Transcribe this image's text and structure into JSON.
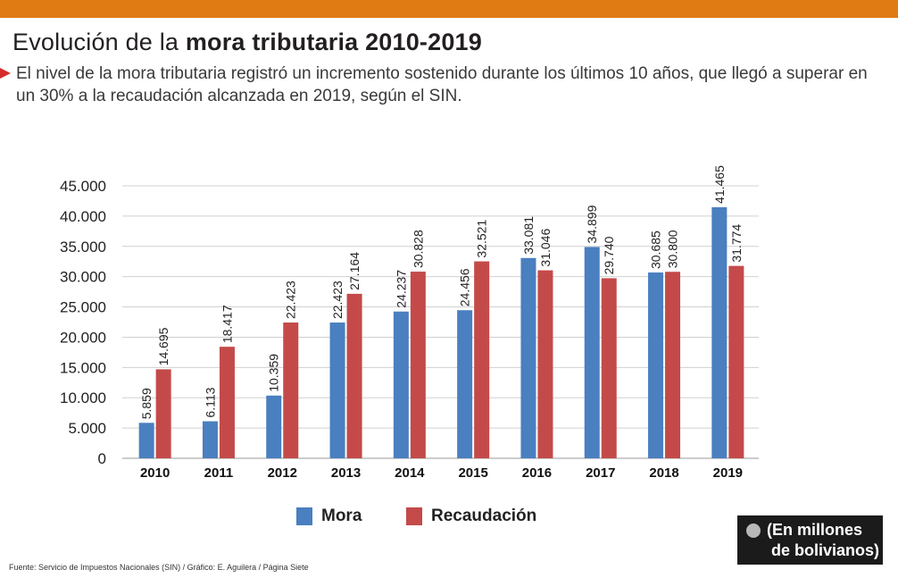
{
  "header": {
    "title_regular": "Evolución de la ",
    "title_bold": "mora tributaria 2010-2019",
    "subtitle": "El nivel de la mora tributaria registró un incremento sostenido durante los últimos 10 años, que llegó a superar en un 30% a la recaudación alcanzada en 2019, según el SIN."
  },
  "colors": {
    "accent_bar": "#e07b14",
    "bullet": "#d62b2b",
    "mora": "#4a7fc0",
    "recaudacion": "#c44a4a",
    "grid": "#d0d0d0"
  },
  "chart_data": {
    "type": "bar",
    "categories": [
      "2010",
      "2011",
      "2012",
      "2013",
      "2014",
      "2015",
      "2016",
      "2017",
      "2018",
      "2019"
    ],
    "series": [
      {
        "name": "Mora",
        "values": [
          5859,
          6113,
          10359,
          22423,
          24237,
          24456,
          33081,
          34899,
          30685,
          41465
        ],
        "labels": [
          "5.859",
          "6.113",
          "10.359",
          "22.423",
          "24.237",
          "24.456",
          "33.081",
          "34.899",
          "30.685",
          "41.465"
        ]
      },
      {
        "name": "Recaudación",
        "values": [
          14695,
          18417,
          22423,
          27164,
          30828,
          32521,
          31046,
          29740,
          30800,
          31774
        ],
        "labels": [
          "14.695",
          "18.417",
          "22.423",
          "27.164",
          "30.828",
          "32.521",
          "31.046",
          "29.740",
          "30.800",
          "31.774"
        ]
      }
    ],
    "yticks": [
      0,
      5000,
      10000,
      15000,
      20000,
      25000,
      30000,
      35000,
      40000,
      45000
    ],
    "ytick_labels": [
      "0",
      "5.000",
      "10.000",
      "15.000",
      "20.000",
      "25.000",
      "30.000",
      "35.000",
      "40.000",
      "45.000"
    ],
    "ylim": [
      0,
      45000
    ],
    "grid": true,
    "legend_position": "bottom-center"
  },
  "legend": {
    "mora": "Mora",
    "recaudacion": "Recaudación"
  },
  "units_note": {
    "line1": "(En millones",
    "line2": "de bolivianos)"
  },
  "source": "Fuente: Servicio de Impuestos Nacionales (SIN) / Gráfico: E. Aguilera / Página Siete"
}
